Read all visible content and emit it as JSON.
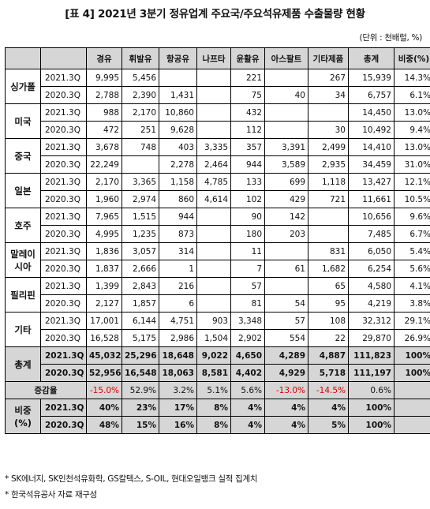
{
  "title": "[표 4] 2021년 3분기 정유업계 주요국/주요석유제품 수출물량 현황",
  "unit": "(단위 : 천배럴, %)",
  "headers": [
    "",
    "",
    "경유",
    "휘발유",
    "항공유",
    "나프타",
    "윤활유",
    "아스팔트",
    "기타제품",
    "총계",
    "비중(%)"
  ],
  "regions": [
    {
      "name": "싱가폴",
      "rows": [
        {
          "period": "2021.3Q",
          "values": [
            "9,995",
            "5,456",
            "",
            "",
            "221",
            "",
            "267",
            "15,939",
            "14.3%"
          ]
        },
        {
          "period": "2020.3Q",
          "values": [
            "2,788",
            "2,390",
            "1,431",
            "",
            "75",
            "40",
            "34",
            "6,757",
            "6.1%"
          ]
        }
      ]
    },
    {
      "name": "미국",
      "rows": [
        {
          "period": "2021.3Q",
          "values": [
            "988",
            "2,170",
            "10,860",
            "",
            "432",
            "",
            "",
            "14,450",
            "13.0%"
          ]
        },
        {
          "period": "2020.3Q",
          "values": [
            "472",
            "251",
            "9,628",
            "",
            "112",
            "",
            "30",
            "10,492",
            "9.4%"
          ]
        }
      ]
    },
    {
      "name": "중국",
      "rows": [
        {
          "period": "2021.3Q",
          "values": [
            "3,678",
            "748",
            "403",
            "3,335",
            "357",
            "3,391",
            "2,499",
            "14,410",
            "13.0%"
          ]
        },
        {
          "period": "2020.3Q",
          "values": [
            "22,249",
            "",
            "2,278",
            "2,464",
            "944",
            "3,589",
            "2,935",
            "34,459",
            "31.0%"
          ]
        }
      ]
    },
    {
      "name": "일본",
      "rows": [
        {
          "period": "2021.3Q",
          "values": [
            "2,170",
            "3,365",
            "1,158",
            "4,785",
            "133",
            "699",
            "1,118",
            "13,427",
            "12.1%"
          ]
        },
        {
          "period": "2020.3Q",
          "values": [
            "1,960",
            "2,974",
            "860",
            "4,614",
            "102",
            "429",
            "721",
            "11,661",
            "10.5%"
          ]
        }
      ]
    },
    {
      "name": "호주",
      "rows": [
        {
          "period": "2021.3Q",
          "values": [
            "7,965",
            "1,515",
            "944",
            "",
            "90",
            "142",
            "",
            "10,656",
            "9.6%"
          ]
        },
        {
          "period": "2020.3Q",
          "values": [
            "4,995",
            "1,235",
            "873",
            "",
            "180",
            "203",
            "",
            "7,485",
            "6.7%"
          ]
        }
      ]
    },
    {
      "name": "말레이시아",
      "rows": [
        {
          "period": "2021.3Q",
          "values": [
            "1,836",
            "3,057",
            "314",
            "",
            "11",
            "",
            "831",
            "6,050",
            "5.4%"
          ]
        },
        {
          "period": "2020.3Q",
          "values": [
            "1,837",
            "2,666",
            "1",
            "",
            "7",
            "61",
            "1,682",
            "6,254",
            "5.6%"
          ]
        }
      ]
    },
    {
      "name": "필리핀",
      "rows": [
        {
          "period": "2021.3Q",
          "values": [
            "1,399",
            "2,843",
            "216",
            "",
            "57",
            "",
            "65",
            "4,580",
            "4.1%"
          ]
        },
        {
          "period": "2020.3Q",
          "values": [
            "2,127",
            "1,857",
            "6",
            "",
            "81",
            "54",
            "95",
            "4,219",
            "3.8%"
          ]
        }
      ]
    },
    {
      "name": "기타",
      "rows": [
        {
          "period": "2021.3Q",
          "values": [
            "17,001",
            "6,144",
            "4,751",
            "903",
            "3,348",
            "57",
            "108",
            "32,312",
            "29.1%"
          ]
        },
        {
          "period": "2020.3Q",
          "values": [
            "16,528",
            "5,175",
            "2,986",
            "1,504",
            "2,902",
            "554",
            "22",
            "29,870",
            "26.9%"
          ]
        }
      ]
    }
  ],
  "total": {
    "name": "총계",
    "rows": [
      {
        "period": "2021.3Q",
        "values": [
          "45,032",
          "25,296",
          "18,648",
          "9,022",
          "4,650",
          "4,289",
          "4,887",
          "111,823",
          "100%"
        ]
      },
      {
        "period": "2020.3Q",
        "values": [
          "52,956",
          "16,548",
          "18,063",
          "8,581",
          "4,402",
          "4,929",
          "5,718",
          "111,197",
          "100%"
        ]
      }
    ]
  },
  "growth": {
    "label": "증감율",
    "values": [
      "-15.0%",
      "52.9%",
      "3.2%",
      "5.1%",
      "5.6%",
      "-13.0%",
      "-14.5%",
      "0.6%",
      ""
    ]
  },
  "share": {
    "name_line1": "비중",
    "name_line2": "(%)",
    "rows": [
      {
        "period": "2021.3Q",
        "values": [
          "40%",
          "23%",
          "17%",
          "8%",
          "4%",
          "4%",
          "4%",
          "100%",
          ""
        ]
      },
      {
        "period": "2020.3Q",
        "values": [
          "48%",
          "15%",
          "16%",
          "8%",
          "4%",
          "4%",
          "5%",
          "100%",
          ""
        ]
      }
    ]
  },
  "notes": [
    "* SK에너지, SK인천석유화학, GS칼텍스, S-OIL, 현대오일뱅크 실적 집계치",
    "* 한국석유공사 자료 재구성"
  ]
}
